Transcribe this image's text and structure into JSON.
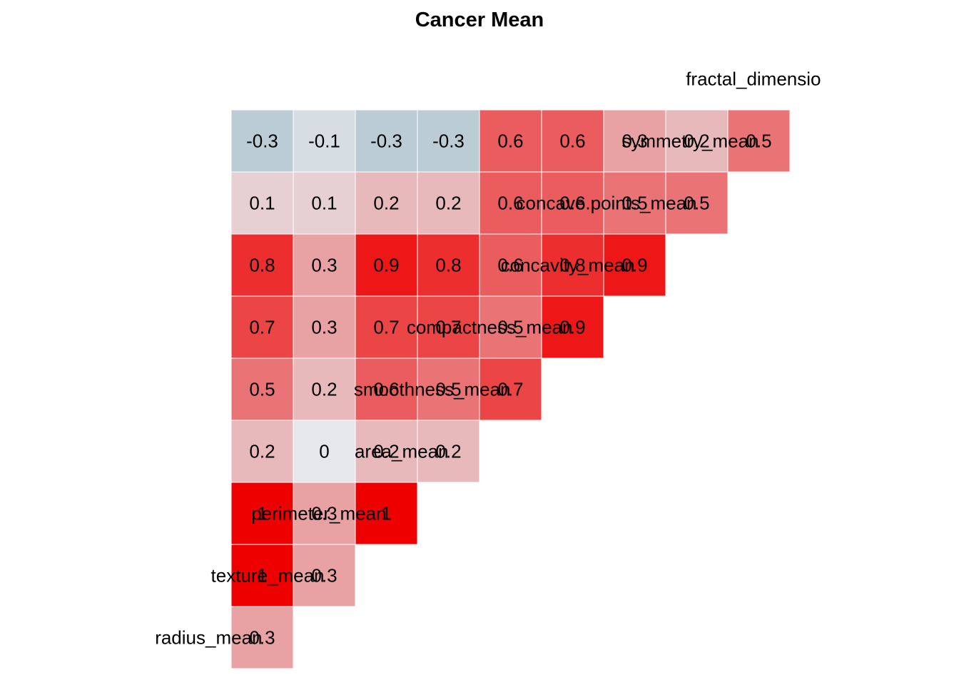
{
  "chart_data": {
    "type": "heatmap",
    "title": "Cancer Mean",
    "row_labels": [
      "radius_mean",
      "texture_mean",
      "perimeter_mean",
      "area_mean",
      "smoothness_mean",
      "compactness_mean",
      "concavity_mean",
      "concave.points_mean",
      "symmetry_mean",
      "fractal_dimensio"
    ],
    "col_labels": [
      "radius_mean",
      "texture_mean",
      "perimeter_mean",
      "area_mean",
      "smoothness_mean",
      "compactness_mean",
      "concavity_mean",
      "concave.points_mean",
      "symmetry_mean",
      "fractal_dimensio"
    ],
    "cells": [
      {
        "row": 1,
        "col": 0,
        "value": 0.3
      },
      {
        "row": 2,
        "col": 0,
        "value": 1
      },
      {
        "row": 2,
        "col": 1,
        "value": 0.3
      },
      {
        "row": 3,
        "col": 0,
        "value": 1
      },
      {
        "row": 3,
        "col": 1,
        "value": 0.3
      },
      {
        "row": 3,
        "col": 2,
        "value": 1
      },
      {
        "row": 4,
        "col": 0,
        "value": 0.2
      },
      {
        "row": 4,
        "col": 1,
        "value": 0
      },
      {
        "row": 4,
        "col": 2,
        "value": 0.2
      },
      {
        "row": 4,
        "col": 3,
        "value": 0.2
      },
      {
        "row": 5,
        "col": 0,
        "value": 0.5
      },
      {
        "row": 5,
        "col": 1,
        "value": 0.2
      },
      {
        "row": 5,
        "col": 2,
        "value": 0.6
      },
      {
        "row": 5,
        "col": 3,
        "value": 0.5
      },
      {
        "row": 5,
        "col": 4,
        "value": 0.7
      },
      {
        "row": 6,
        "col": 0,
        "value": 0.7
      },
      {
        "row": 6,
        "col": 1,
        "value": 0.3
      },
      {
        "row": 6,
        "col": 2,
        "value": 0.7
      },
      {
        "row": 6,
        "col": 3,
        "value": 0.7
      },
      {
        "row": 6,
        "col": 4,
        "value": 0.5
      },
      {
        "row": 6,
        "col": 5,
        "value": 0.9
      },
      {
        "row": 7,
        "col": 0,
        "value": 0.8
      },
      {
        "row": 7,
        "col": 1,
        "value": 0.3
      },
      {
        "row": 7,
        "col": 2,
        "value": 0.9
      },
      {
        "row": 7,
        "col": 3,
        "value": 0.8
      },
      {
        "row": 7,
        "col": 4,
        "value": 0.6
      },
      {
        "row": 7,
        "col": 5,
        "value": 0.8
      },
      {
        "row": 7,
        "col": 6,
        "value": 0.9
      },
      {
        "row": 8,
        "col": 0,
        "value": 0.1
      },
      {
        "row": 8,
        "col": 1,
        "value": 0.1
      },
      {
        "row": 8,
        "col": 2,
        "value": 0.2
      },
      {
        "row": 8,
        "col": 3,
        "value": 0.2
      },
      {
        "row": 8,
        "col": 4,
        "value": 0.6
      },
      {
        "row": 8,
        "col": 5,
        "value": 0.6
      },
      {
        "row": 8,
        "col": 6,
        "value": 0.5
      },
      {
        "row": 8,
        "col": 7,
        "value": 0.5
      },
      {
        "row": 9,
        "col": 0,
        "value": -0.3
      },
      {
        "row": 9,
        "col": 1,
        "value": -0.1
      },
      {
        "row": 9,
        "col": 2,
        "value": -0.3
      },
      {
        "row": 9,
        "col": 3,
        "value": -0.3
      },
      {
        "row": 9,
        "col": 4,
        "value": 0.6
      },
      {
        "row": 9,
        "col": 5,
        "value": 0.6
      },
      {
        "row": 9,
        "col": 6,
        "value": 0.3
      },
      {
        "row": 9,
        "col": 7,
        "value": 0.2
      },
      {
        "row": 9,
        "col": 8,
        "value": 0.5
      }
    ],
    "color_scale": {
      "low": "#5A8EA4",
      "mid": "#E5E7EA",
      "high": "#EE0000",
      "domain": [
        -1,
        0,
        1
      ]
    },
    "legend": "none"
  }
}
